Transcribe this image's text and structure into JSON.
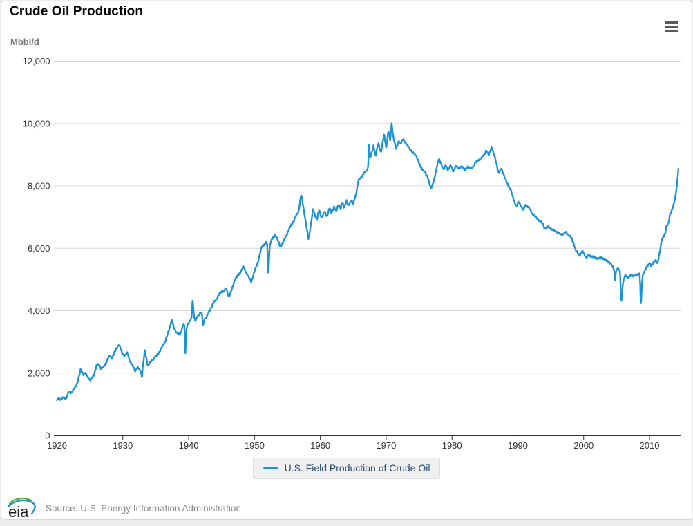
{
  "header": {
    "title": "Crude Oil Production"
  },
  "icons": {
    "menu": "hamburger",
    "logo": "eia-swoosh"
  },
  "legend": {
    "label": "U.S. Field Production of Crude Oil"
  },
  "footer": {
    "logo_text": "eia",
    "source": "Source: U.S. Energy Information Administration"
  },
  "colors": {
    "line": "#1e93d3",
    "grid": "#d8d8d8",
    "axis": "#333333",
    "tick_label": "#333333",
    "title": "#000000",
    "unit_label": "#757575",
    "legend_text": "#274b6d",
    "legend_bg": "#f0f0f0",
    "source_text": "#8a8a8a",
    "menu_icon": "#58595b",
    "page_bg": "#ececec",
    "card_border": "#d9d9d9",
    "logo_green": "#5fa832",
    "logo_blue": "#2191c9"
  },
  "chart_data": {
    "type": "line",
    "title": "Crude Oil Production",
    "unit_label": "Mbbl/d",
    "xlabel": "",
    "ylabel": "Mbbl/d",
    "x_range": [
      1920,
      2014.4
    ],
    "ylim": [
      0,
      12000
    ],
    "y_tick_interval": 2000,
    "y_tick_labels": [
      "0",
      "2,000",
      "4,000",
      "6,000",
      "8,000",
      "10,000",
      "12,000"
    ],
    "x_ticks": [
      1920,
      1930,
      1940,
      1950,
      1960,
      1970,
      1980,
      1990,
      2000,
      2010
    ],
    "grid": "horizontal",
    "legend_position": "bottom-center",
    "resolution": "monthly",
    "jitter": 38,
    "series": [
      {
        "name": "U.S. Field Production of Crude Oil",
        "color": "#1e93d3",
        "anchors": [
          [
            1920.0,
            1130
          ],
          [
            1920.25,
            1210
          ],
          [
            1920.6,
            1140
          ],
          [
            1921.0,
            1230
          ],
          [
            1921.4,
            1180
          ],
          [
            1921.8,
            1400
          ],
          [
            1922.2,
            1380
          ],
          [
            1922.7,
            1520
          ],
          [
            1923.1,
            1700
          ],
          [
            1923.6,
            2110
          ],
          [
            1924.0,
            1970
          ],
          [
            1924.3,
            2000
          ],
          [
            1924.7,
            1870
          ],
          [
            1925.1,
            1760
          ],
          [
            1925.6,
            1950
          ],
          [
            1926.0,
            2230
          ],
          [
            1926.4,
            2290
          ],
          [
            1926.7,
            2140
          ],
          [
            1927.1,
            2190
          ],
          [
            1927.7,
            2450
          ],
          [
            1928.0,
            2560
          ],
          [
            1928.3,
            2480
          ],
          [
            1928.7,
            2640
          ],
          [
            1929.0,
            2780
          ],
          [
            1929.4,
            2930
          ],
          [
            1929.9,
            2630
          ],
          [
            1930.3,
            2560
          ],
          [
            1930.7,
            2650
          ],
          [
            1931.1,
            2370
          ],
          [
            1931.5,
            2230
          ],
          [
            1931.9,
            2070
          ],
          [
            1932.2,
            2180
          ],
          [
            1932.6,
            2100
          ],
          [
            1932.75,
            2050
          ],
          [
            1932.9,
            1850
          ],
          [
            1933.0,
            2150
          ],
          [
            1933.1,
            2300
          ],
          [
            1933.35,
            2730
          ],
          [
            1933.8,
            2230
          ],
          [
            1934.2,
            2350
          ],
          [
            1934.7,
            2470
          ],
          [
            1935.1,
            2550
          ],
          [
            1935.6,
            2700
          ],
          [
            1936.0,
            2850
          ],
          [
            1936.5,
            3050
          ],
          [
            1937.0,
            3370
          ],
          [
            1937.4,
            3710
          ],
          [
            1937.8,
            3420
          ],
          [
            1938.2,
            3300
          ],
          [
            1938.7,
            3220
          ],
          [
            1939.2,
            3590
          ],
          [
            1939.35,
            3500
          ],
          [
            1939.5,
            2630
          ],
          [
            1939.65,
            3400
          ],
          [
            1939.8,
            3550
          ],
          [
            1940.3,
            3700
          ],
          [
            1940.45,
            3730
          ],
          [
            1940.6,
            4400
          ],
          [
            1940.8,
            3850
          ],
          [
            1941.0,
            3670
          ],
          [
            1941.4,
            3830
          ],
          [
            1941.8,
            3950
          ],
          [
            1942.0,
            3900
          ],
          [
            1942.2,
            3480
          ],
          [
            1942.4,
            3750
          ],
          [
            1942.7,
            3800
          ],
          [
            1943.2,
            4000
          ],
          [
            1943.7,
            4230
          ],
          [
            1944.1,
            4330
          ],
          [
            1944.6,
            4520
          ],
          [
            1945.0,
            4600
          ],
          [
            1945.7,
            4700
          ],
          [
            1946.1,
            4440
          ],
          [
            1946.6,
            4700
          ],
          [
            1947.0,
            5000
          ],
          [
            1947.6,
            5150
          ],
          [
            1948.3,
            5410
          ],
          [
            1949.2,
            5040
          ],
          [
            1949.5,
            4930
          ],
          [
            1950.0,
            5250
          ],
          [
            1950.5,
            5550
          ],
          [
            1951.1,
            6050
          ],
          [
            1951.8,
            6190
          ],
          [
            1951.95,
            6150
          ],
          [
            1952.1,
            5080
          ],
          [
            1952.3,
            6100
          ],
          [
            1952.5,
            6230
          ],
          [
            1953.2,
            6450
          ],
          [
            1953.9,
            6050
          ],
          [
            1954.5,
            6250
          ],
          [
            1955.2,
            6600
          ],
          [
            1956.0,
            6900
          ],
          [
            1956.7,
            7200
          ],
          [
            1957.1,
            7730
          ],
          [
            1957.6,
            7100
          ],
          [
            1958.2,
            6260
          ],
          [
            1958.9,
            7260
          ],
          [
            1959.2,
            7050
          ],
          [
            1959.5,
            6940
          ],
          [
            1959.8,
            7230
          ],
          [
            1960.2,
            6970
          ],
          [
            1960.6,
            7190
          ],
          [
            1961.0,
            7010
          ],
          [
            1961.4,
            7310
          ],
          [
            1961.7,
            7120
          ],
          [
            1962.1,
            7350
          ],
          [
            1962.4,
            7170
          ],
          [
            1962.8,
            7420
          ],
          [
            1963.1,
            7270
          ],
          [
            1963.3,
            7490
          ],
          [
            1963.6,
            7310
          ],
          [
            1964.0,
            7530
          ],
          [
            1964.3,
            7350
          ],
          [
            1964.7,
            7560
          ],
          [
            1965.0,
            7420
          ],
          [
            1965.4,
            7710
          ],
          [
            1965.8,
            8200
          ],
          [
            1966.2,
            8250
          ],
          [
            1966.6,
            8420
          ],
          [
            1967.0,
            8450
          ],
          [
            1967.25,
            8600
          ],
          [
            1967.4,
            9420
          ],
          [
            1967.55,
            8900
          ],
          [
            1967.8,
            9040
          ],
          [
            1968.1,
            9300
          ],
          [
            1968.4,
            8970
          ],
          [
            1968.8,
            9370
          ],
          [
            1969.2,
            9070
          ],
          [
            1969.7,
            9650
          ],
          [
            1970.0,
            9230
          ],
          [
            1970.35,
            9790
          ],
          [
            1970.6,
            9420
          ],
          [
            1970.85,
            10050
          ],
          [
            1971.0,
            9700
          ],
          [
            1971.2,
            9450
          ],
          [
            1971.5,
            9190
          ],
          [
            1971.9,
            9450
          ],
          [
            1972.2,
            9340
          ],
          [
            1972.6,
            9520
          ],
          [
            1973.0,
            9350
          ],
          [
            1973.5,
            9230
          ],
          [
            1974.0,
            9070
          ],
          [
            1974.5,
            9000
          ],
          [
            1975.1,
            8670
          ],
          [
            1975.8,
            8440
          ],
          [
            1976.3,
            8300
          ],
          [
            1976.8,
            7890
          ],
          [
            1977.3,
            8220
          ],
          [
            1978.0,
            8890
          ],
          [
            1978.7,
            8520
          ],
          [
            1979.0,
            8700
          ],
          [
            1979.4,
            8480
          ],
          [
            1979.8,
            8700
          ],
          [
            1980.2,
            8440
          ],
          [
            1980.6,
            8670
          ],
          [
            1981.1,
            8530
          ],
          [
            1981.5,
            8650
          ],
          [
            1982.0,
            8500
          ],
          [
            1982.4,
            8630
          ],
          [
            1983.0,
            8550
          ],
          [
            1983.5,
            8740
          ],
          [
            1984.2,
            8850
          ],
          [
            1984.9,
            9000
          ],
          [
            1985.2,
            9150
          ],
          [
            1985.6,
            8980
          ],
          [
            1986.0,
            9260
          ],
          [
            1986.6,
            8850
          ],
          [
            1987.1,
            8400
          ],
          [
            1987.5,
            8560
          ],
          [
            1987.9,
            8350
          ],
          [
            1988.3,
            8100
          ],
          [
            1988.9,
            7890
          ],
          [
            1989.3,
            7600
          ],
          [
            1989.8,
            7340
          ],
          [
            1990.1,
            7480
          ],
          [
            1990.5,
            7370
          ],
          [
            1990.8,
            7220
          ],
          [
            1991.2,
            7400
          ],
          [
            1991.7,
            7300
          ],
          [
            1992.2,
            7110
          ],
          [
            1992.7,
            7000
          ],
          [
            1993.3,
            6890
          ],
          [
            1993.8,
            6780
          ],
          [
            1994.1,
            6630
          ],
          [
            1994.7,
            6700
          ],
          [
            1995.2,
            6590
          ],
          [
            1995.7,
            6560
          ],
          [
            1996.2,
            6480
          ],
          [
            1996.8,
            6440
          ],
          [
            1997.3,
            6520
          ],
          [
            1997.8,
            6410
          ],
          [
            1998.2,
            6300
          ],
          [
            1998.5,
            6150
          ],
          [
            1998.8,
            5930
          ],
          [
            1999.1,
            5850
          ],
          [
            1999.4,
            5780
          ],
          [
            1999.8,
            5900
          ],
          [
            2000.1,
            5820
          ],
          [
            2000.4,
            5700
          ],
          [
            2000.8,
            5780
          ],
          [
            2001.2,
            5740
          ],
          [
            2001.7,
            5700
          ],
          [
            2002.3,
            5670
          ],
          [
            2002.8,
            5710
          ],
          [
            2003.3,
            5620
          ],
          [
            2003.9,
            5560
          ],
          [
            2004.3,
            5440
          ],
          [
            2004.6,
            5350
          ],
          [
            2004.75,
            4980
          ],
          [
            2004.9,
            5250
          ],
          [
            2005.1,
            5350
          ],
          [
            2005.45,
            5300
          ],
          [
            2005.55,
            5250
          ],
          [
            2005.7,
            4150
          ],
          [
            2005.9,
            4750
          ],
          [
            2006.1,
            5000
          ],
          [
            2006.3,
            5150
          ],
          [
            2006.8,
            5050
          ],
          [
            2007.2,
            5150
          ],
          [
            2007.6,
            5100
          ],
          [
            2008.0,
            5150
          ],
          [
            2008.4,
            5200
          ],
          [
            2008.55,
            5150
          ],
          [
            2008.7,
            3970
          ],
          [
            2008.85,
            4900
          ],
          [
            2009.0,
            5150
          ],
          [
            2009.4,
            5330
          ],
          [
            2009.8,
            5450
          ],
          [
            2010.0,
            5560
          ],
          [
            2010.3,
            5410
          ],
          [
            2010.7,
            5590
          ],
          [
            2011.0,
            5630
          ],
          [
            2011.2,
            5480
          ],
          [
            2011.45,
            5750
          ],
          [
            2011.65,
            6000
          ],
          [
            2011.85,
            6280
          ],
          [
            2012.1,
            6350
          ],
          [
            2012.4,
            6480
          ],
          [
            2012.6,
            6740
          ],
          [
            2012.9,
            6800
          ],
          [
            2013.1,
            7070
          ],
          [
            2013.35,
            7190
          ],
          [
            2013.6,
            7370
          ],
          [
            2013.9,
            7600
          ],
          [
            2014.1,
            7900
          ],
          [
            2014.25,
            8220
          ],
          [
            2014.38,
            8550
          ]
        ]
      }
    ]
  }
}
